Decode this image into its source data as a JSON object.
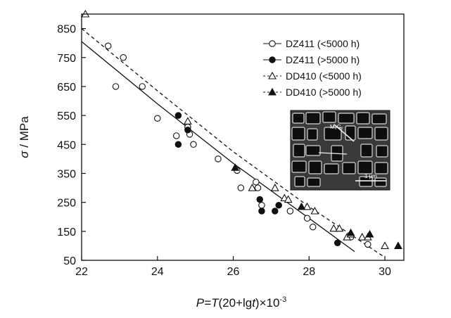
{
  "chart_data": {
    "type": "scatter",
    "xlabel": {
      "prefix": "P=",
      "t1": "T",
      "mid": "(20+lg",
      "t2": "t",
      "suffix": ")×10",
      "sup": "-3"
    },
    "ylabel": {
      "sym": "σ",
      "unit": " / MPa"
    },
    "xlim": [
      22,
      30.5
    ],
    "ylim": [
      50,
      900
    ],
    "xticks": [
      22,
      24,
      26,
      28,
      30
    ],
    "yticks": [
      50,
      150,
      250,
      350,
      450,
      550,
      650,
      750,
      850
    ],
    "grid": false,
    "legend_position": "top-right",
    "series": [
      {
        "name": "DZ411 (<5000 h)",
        "marker": "circle-open",
        "x": [
          22.7,
          22.9,
          23.1,
          23.6,
          24.0,
          24.5,
          24.8,
          24.85,
          24.95,
          25.6,
          26.1,
          26.2,
          26.6,
          26.65,
          26.75,
          27.5,
          27.95,
          28.1,
          29.1,
          29.55
        ],
        "y": [
          790,
          650,
          750,
          650,
          540,
          480,
          510,
          485,
          450,
          400,
          360,
          300,
          320,
          300,
          240,
          220,
          195,
          165,
          130,
          105
        ]
      },
      {
        "name": "DZ411 (>5000 h)",
        "marker": "circle-filled",
        "x": [
          24.55,
          24.55,
          24.8,
          26.7,
          26.75,
          27.1,
          27.2,
          28.75
        ],
        "y": [
          550,
          450,
          500,
          260,
          220,
          220,
          240,
          110
        ]
      },
      {
        "name": "DD410 (<5000 h)",
        "marker": "triangle-open",
        "x": [
          22.1,
          24.8,
          26.5,
          27.1,
          27.35,
          27.45,
          27.95,
          28.15,
          28.65,
          28.8,
          29.0,
          29.1,
          29.4,
          29.55,
          30.0
        ],
        "y": [
          900,
          530,
          300,
          300,
          265,
          260,
          235,
          220,
          160,
          160,
          130,
          140,
          130,
          130,
          100
        ]
      },
      {
        "name": "DD410 (>5000 h)",
        "marker": "triangle-filled",
        "x": [
          26.05,
          27.8,
          29.1,
          29.6,
          30.35
        ],
        "y": [
          370,
          235,
          145,
          140,
          100
        ]
      }
    ],
    "fit_lines": [
      {
        "style": "solid",
        "x": [
          22.0,
          24.0,
          26.0,
          28.0,
          29.2
        ],
        "y": [
          805,
          590,
          385,
          195,
          80
        ]
      },
      {
        "style": "dashed",
        "x": [
          22.0,
          24.0,
          26.0,
          28.0,
          30.0
        ],
        "y": [
          850,
          635,
          425,
          235,
          60
        ]
      }
    ],
    "inset": {
      "description_labels": {
        "scale_bar": "1 μm",
        "tag": "M₂C₃"
      }
    }
  },
  "colors": {
    "ink": "#111111",
    "inset_bg": "#3a3a3a"
  }
}
